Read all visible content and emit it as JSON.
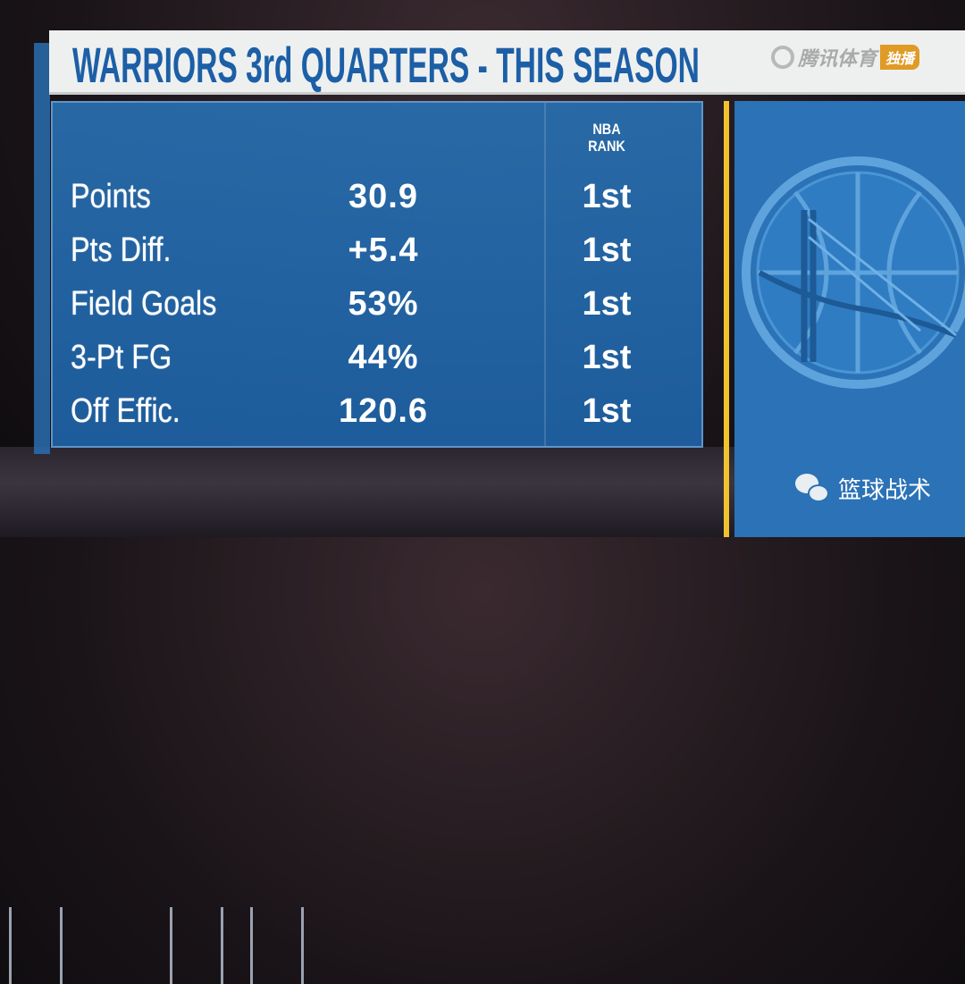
{
  "header": {
    "title": "WARRIORS 3rd QUARTERS - THIS SEASON",
    "brand": "腾讯体育",
    "brand_badge": "独播"
  },
  "table": {
    "rank_header": [
      "NBA",
      "RANK"
    ],
    "rows": [
      {
        "label": "Points",
        "value": "30.9",
        "rank": "1st"
      },
      {
        "label": "Pts Diff.",
        "value": "+5.4",
        "rank": "1st"
      },
      {
        "label": "Field Goals",
        "value": "53%",
        "rank": "1st"
      },
      {
        "label": "3-Pt FG",
        "value": "44%",
        "rank": "1st"
      },
      {
        "label": "Off Effic.",
        "value": "120.6",
        "rank": "1st"
      }
    ]
  },
  "watermark": {
    "icon": "wechat-icon",
    "text": "篮球战术"
  },
  "colors": {
    "title": "#1c5fa6",
    "panel": "#286eaf",
    "accent": "#f2c12e",
    "badge": "#e09a26"
  }
}
